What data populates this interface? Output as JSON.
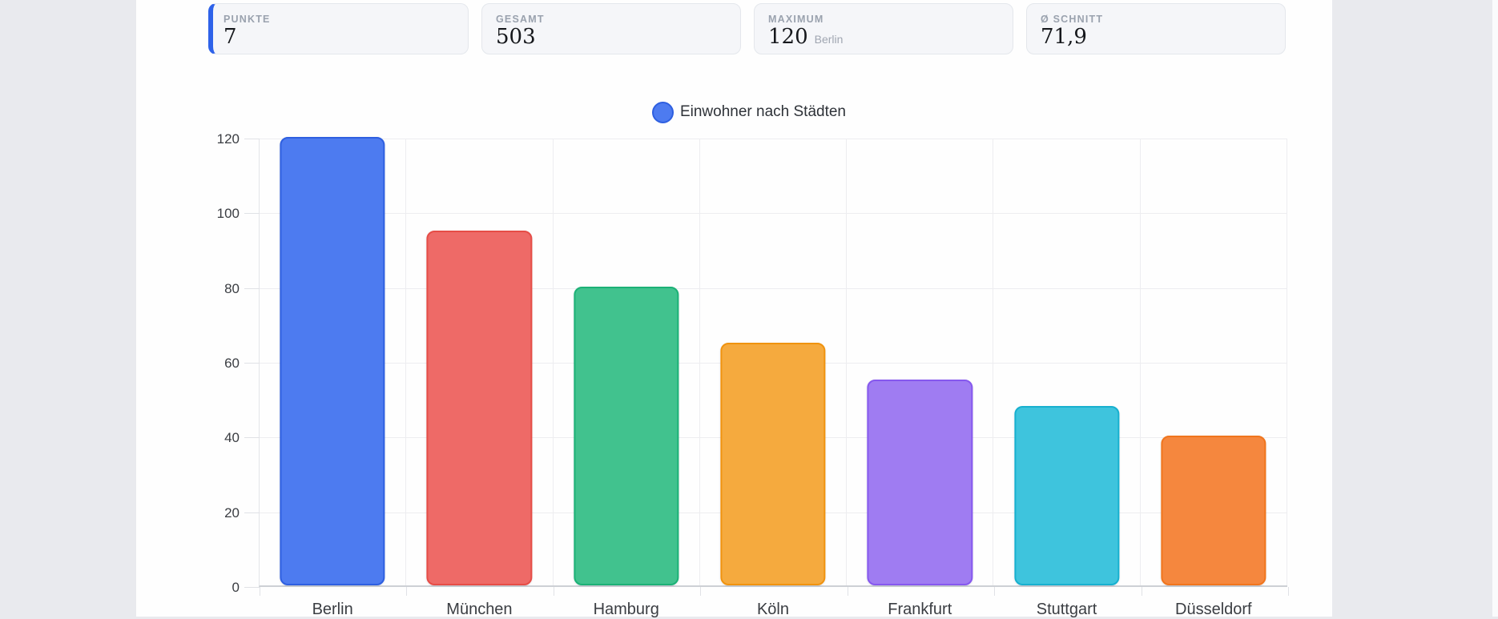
{
  "stats": [
    {
      "label": "PUNKTE",
      "value": "7",
      "sub": ""
    },
    {
      "label": "GESAMT",
      "value": "503",
      "sub": ""
    },
    {
      "label": "MAXIMUM",
      "value": "120",
      "sub": "Berlin"
    },
    {
      "label": "Ø SCHNITT",
      "value": "71,9",
      "sub": ""
    }
  ],
  "accent_color": "#2e62e9",
  "chart_data": {
    "type": "bar",
    "title": "Einwohner nach Städten",
    "legend": {
      "label": "Einwohner nach Städten",
      "position": "top",
      "color": "#4d7bf0",
      "border_color": "#2e5fe0"
    },
    "categories": [
      "Berlin",
      "München",
      "Hamburg",
      "Köln",
      "Frankfurt",
      "Stuttgart",
      "Düsseldorf"
    ],
    "values": [
      120,
      95,
      80,
      65,
      55,
      48,
      40
    ],
    "bar_fill": [
      "#4d7bf0",
      "#ee6a67",
      "#41c28e",
      "#f5aa3e",
      "#9f7cf2",
      "#3ec4dd",
      "#f5873e"
    ],
    "bar_border": [
      "#2e5fe0",
      "#e64d47",
      "#1cb176",
      "#f0930f",
      "#8658ee",
      "#17b0cf",
      "#f0751d"
    ],
    "xlabel": "",
    "ylabel": "",
    "ylim": [
      0,
      120
    ],
    "yticks": [
      0,
      20,
      40,
      60,
      80,
      100,
      120
    ],
    "grid": true
  }
}
